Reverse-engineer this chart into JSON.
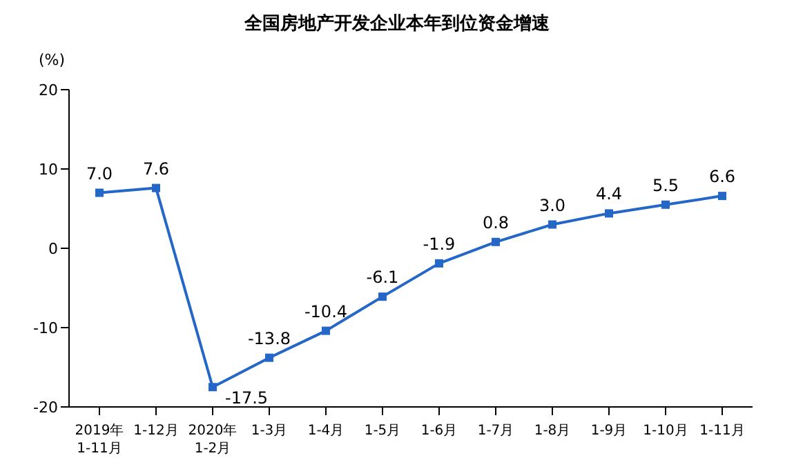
{
  "chart_data": {
    "type": "line",
    "title": "全国房地产开发企业本年到位资金增速",
    "ylabel": "(%)",
    "categories": [
      "2019年\n1-11月",
      "1-12月",
      "2020年\n1-2月",
      "1-3月",
      "1-4月",
      "1-5月",
      "1-6月",
      "1-7月",
      "1-8月",
      "1-9月",
      "1-10月",
      "1-11月"
    ],
    "series": [
      {
        "color": "#2567c6",
        "values": [
          7.0,
          7.6,
          -17.5,
          -13.8,
          -10.4,
          -6.1,
          -1.9,
          0.8,
          3.0,
          4.4,
          5.5,
          6.6
        ],
        "value_labels": [
          "7.0",
          "7.6",
          "-17.5",
          "-13.8",
          "-10.4",
          "-6.1",
          "-1.9",
          "0.8",
          "3.0",
          "4.4",
          "5.5",
          "6.6"
        ]
      }
    ],
    "ylim": [
      -20,
      20
    ],
    "yticks": [
      -20,
      -10,
      0,
      10,
      20
    ],
    "grid": false,
    "legend": false,
    "marker": "square",
    "line_style": "solid"
  }
}
